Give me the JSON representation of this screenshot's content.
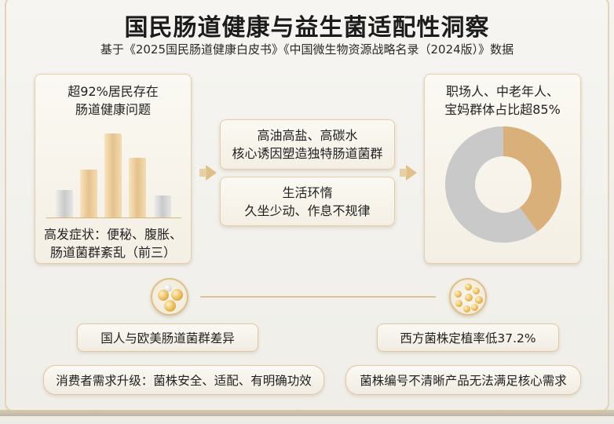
{
  "header": {
    "title": "国民肠道健康与益生菌适配性洞察",
    "subtitle": "基于《2025国民肠道健康白皮书》《中国微生物资源战略名录（2024版）》数据"
  },
  "left_card": {
    "headline_1": "超92%居民存在",
    "headline_2": "肠道健康问题",
    "footer_1": "高发症状：便秘、腹胀、",
    "footer_2": "肠道菌群紊乱（前三）",
    "bar_levels": [
      0.31,
      0.54,
      0.95,
      0.67,
      0.25
    ],
    "bar_colors": [
      "grey",
      "gold",
      "gold",
      "gold",
      "grey"
    ]
  },
  "middle": {
    "box1_line1": "高油高盐、高碳水",
    "box1_line2": "核心诱因塑造独特肠道菌群",
    "box2_line1": "生活环惰",
    "box2_line2": "久坐少动、作息不规律"
  },
  "right_card": {
    "headline_1": "职场人、中老年人、",
    "headline_2": "宝妈群体占比超85%",
    "donut_highlight_share": 0.4,
    "colors": {
      "highlight": "#d9b07a",
      "rest": "#c9c9c9"
    }
  },
  "bottom": {
    "left_label": "国人与欧美肠道菌群差异",
    "right_label": "西方菌株定植率低37.2%",
    "left_need": "消费者需求升级：菌株安全、适配、有明确功效",
    "right_need": "菌株编号不清晰产品无法满足核心需求"
  },
  "colors": {
    "accent": "#e0c08a",
    "text": "#222222"
  }
}
